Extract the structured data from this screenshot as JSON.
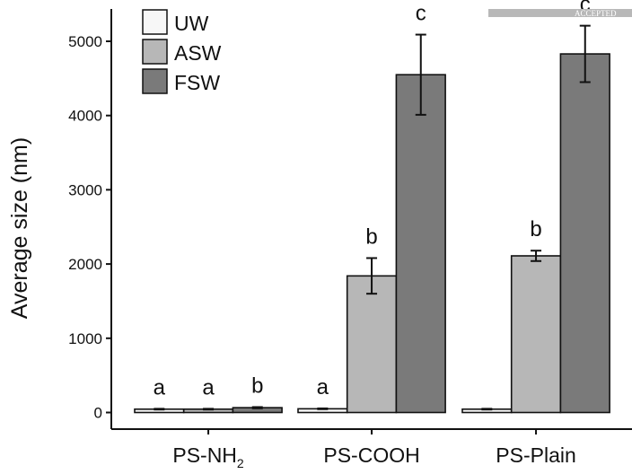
{
  "watermark": {
    "text": "ACCEPTED",
    "color": "#b8b8b8"
  },
  "chart_data": {
    "type": "bar",
    "categories": [
      "PS-NH",
      "PS-COOH",
      "PS-Plain"
    ],
    "category_subscripts": [
      "2",
      "",
      ""
    ],
    "ylabel": "Average size (nm)",
    "xlabel": "",
    "ylim": [
      0,
      5400
    ],
    "yticks": [
      0,
      1000,
      2000,
      3000,
      4000,
      5000
    ],
    "grid": false,
    "legend_position": "top-left",
    "error_bars": true,
    "series": [
      {
        "name": "UW",
        "color": "#f7f7f7",
        "values": [
          45,
          50,
          45
        ],
        "errors": [
          5,
          5,
          5
        ],
        "labels": [
          "a",
          "a",
          ""
        ]
      },
      {
        "name": "ASW",
        "color": "#b7b7b7",
        "values": [
          45,
          1840,
          2110
        ],
        "errors": [
          5,
          240,
          70
        ],
        "labels": [
          "a",
          "b",
          "b"
        ]
      },
      {
        "name": "FSW",
        "color": "#7a7a7a",
        "values": [
          65,
          4550,
          4830
        ],
        "errors": [
          8,
          540,
          380
        ],
        "labels": [
          "b",
          "c",
          "c"
        ]
      }
    ]
  }
}
